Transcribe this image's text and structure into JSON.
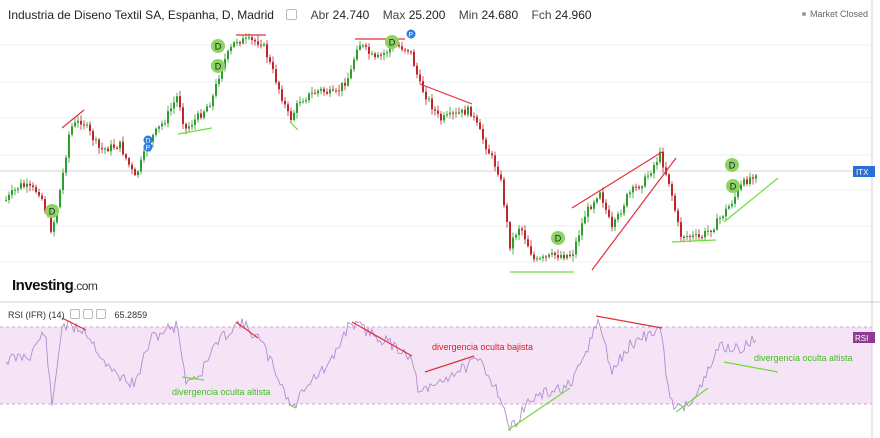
{
  "header": {
    "symbol_title": "Industria de Diseno Textil SA, Espanha, D, Madrid",
    "open_label": "Abr",
    "open_value": "24.740",
    "high_label": "Max",
    "high_value": "25.200",
    "low_label": "Min",
    "low_value": "24.680",
    "close_label": "Fch",
    "close_value": "24.960",
    "market_status": "Market Closed"
  },
  "brand": {
    "name": "Investing",
    "domain": ".com"
  },
  "price_tag": "ITX",
  "rsi": {
    "title": "RSI (IFR) (14)",
    "value": "65.2859",
    "tag": "RSI"
  },
  "chart_data": {
    "type": "line",
    "panels": [
      {
        "name": "price",
        "series": "daily OHLC candles (green up / red down)",
        "close_last": 24.96
      },
      {
        "name": "RSI",
        "band": [
          30,
          70
        ],
        "value_last": 65.2859
      }
    ],
    "annotations": [
      {
        "text": "divergencia oculta altista",
        "color": "#3fbf1f"
      },
      {
        "text": "divergencia oculta bajista",
        "color": "#d42020"
      },
      {
        "text": "divergencia oculta altista",
        "color": "#3fbf1f"
      }
    ],
    "markers": [
      "D",
      "D",
      "D",
      "D",
      "D",
      "D",
      "D",
      "D",
      "P",
      "P",
      "P"
    ],
    "colors": {
      "up": "#2e9e2e",
      "down": "#c0262d",
      "rsi_line": "#b48bd2",
      "band": "#f5e4f6"
    }
  }
}
